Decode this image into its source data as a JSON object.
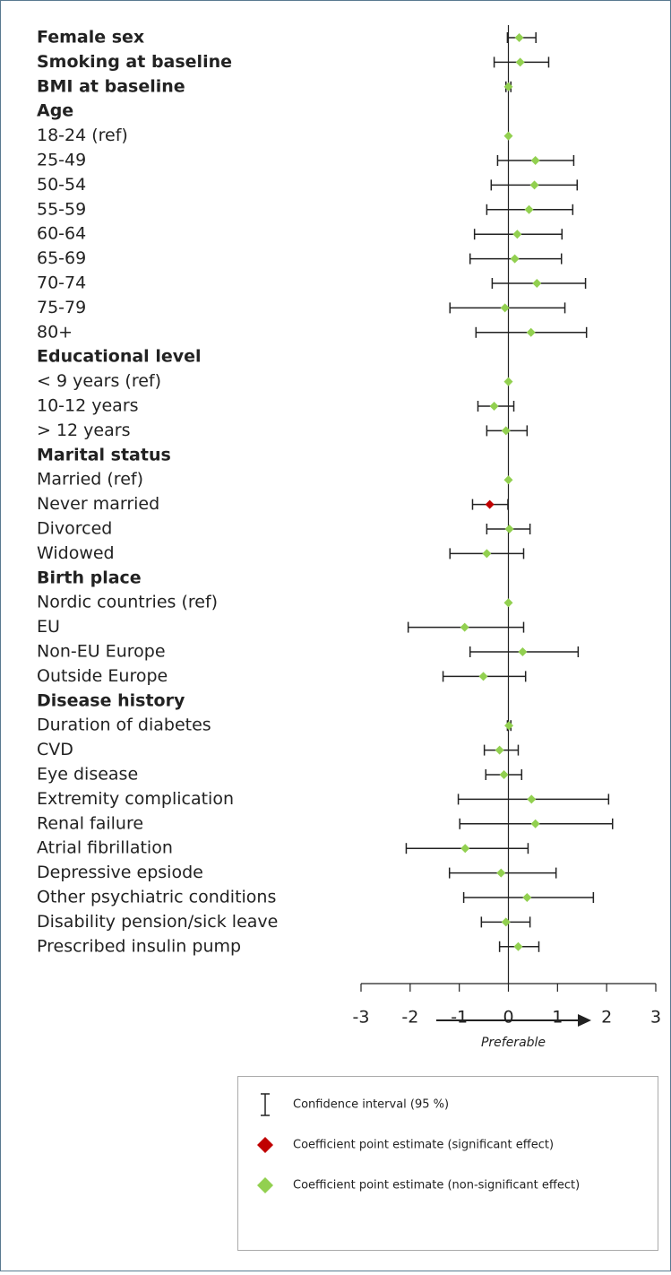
{
  "chart_data": {
    "type": "forest",
    "categories": [
      "Female sex",
      "Smoking at baseline",
      "BMI at baseline",
      "Age",
      "18-24 (ref)",
      "25-49",
      "50-54",
      "55-59",
      "60-64",
      "65-69",
      "70-74",
      "75-79",
      "80+",
      "Educational level",
      "< 9 years (ref)",
      "10-12 years",
      "> 12 years",
      "Marital status",
      "Married (ref)",
      "Never married",
      "Divorced",
      "Widowed",
      "Birth place",
      "Nordic countries (ref)",
      "EU",
      "Non-EU Europe",
      "Outside Europe",
      "Disease history",
      "Duration of diabetes",
      "CVD",
      "Eye disease",
      "Extremity complication",
      "Renal failure",
      "Atrial fibrillation",
      "Depressive epsiode",
      "Other psychiatric conditions",
      "Disability pension/sick leave",
      "Prescribed insulin pump"
    ],
    "bold": [
      true,
      true,
      true,
      true,
      false,
      false,
      false,
      false,
      false,
      false,
      false,
      false,
      false,
      true,
      false,
      false,
      false,
      true,
      false,
      false,
      false,
      false,
      true,
      false,
      false,
      false,
      false,
      true,
      false,
      false,
      false,
      false,
      false,
      false,
      false,
      false,
      false,
      false
    ],
    "values": [
      0.22,
      0.24,
      0.0,
      null,
      0,
      0.55,
      0.53,
      0.42,
      0.18,
      0.13,
      0.58,
      -0.07,
      0.46,
      null,
      0,
      -0.29,
      -0.05,
      null,
      0,
      -0.38,
      0.02,
      -0.44,
      null,
      0,
      -0.89,
      0.29,
      -0.51,
      null,
      0.01,
      -0.18,
      -0.09,
      0.47,
      0.55,
      -0.88,
      -0.15,
      0.38,
      -0.05,
      0.2
    ],
    "lower": [
      -0.02,
      -0.29,
      -0.05,
      null,
      null,
      -0.22,
      -0.35,
      -0.44,
      -0.69,
      -0.78,
      -0.33,
      -1.19,
      -0.66,
      null,
      null,
      -0.62,
      -0.44,
      null,
      null,
      -0.73,
      -0.44,
      -1.19,
      null,
      null,
      -2.04,
      -0.78,
      -1.33,
      null,
      -0.02,
      -0.49,
      -0.46,
      -1.02,
      -0.99,
      -2.08,
      -1.2,
      -0.91,
      -0.55,
      -0.18
    ],
    "upper": [
      0.56,
      0.82,
      0.05,
      null,
      null,
      1.33,
      1.4,
      1.31,
      1.09,
      1.08,
      1.57,
      1.15,
      1.59,
      null,
      null,
      0.11,
      0.38,
      null,
      null,
      -0.01,
      0.44,
      0.31,
      null,
      null,
      0.31,
      1.42,
      0.35,
      null,
      0.05,
      0.2,
      0.27,
      2.04,
      2.12,
      0.4,
      0.97,
      1.73,
      0.44,
      0.62
    ],
    "significant": [
      false,
      false,
      false,
      false,
      false,
      false,
      false,
      false,
      false,
      false,
      false,
      false,
      false,
      false,
      false,
      false,
      false,
      false,
      false,
      true,
      false,
      false,
      false,
      false,
      false,
      false,
      false,
      false,
      false,
      false,
      false,
      false,
      false,
      false,
      false,
      false,
      false,
      false
    ],
    "significant_color": "#c00000",
    "nonsignificant_color": "#92d050",
    "xlim": [
      -3,
      3
    ],
    "xticks": [
      -3,
      -2,
      -1,
      0,
      1,
      2,
      3
    ],
    "x_annotation": "Preferable",
    "legend": [
      "Confidence interval (95 %)",
      "Coefficient point estimate (significant effect)",
      "Coefficient point estimate (non-significant effect)"
    ]
  }
}
